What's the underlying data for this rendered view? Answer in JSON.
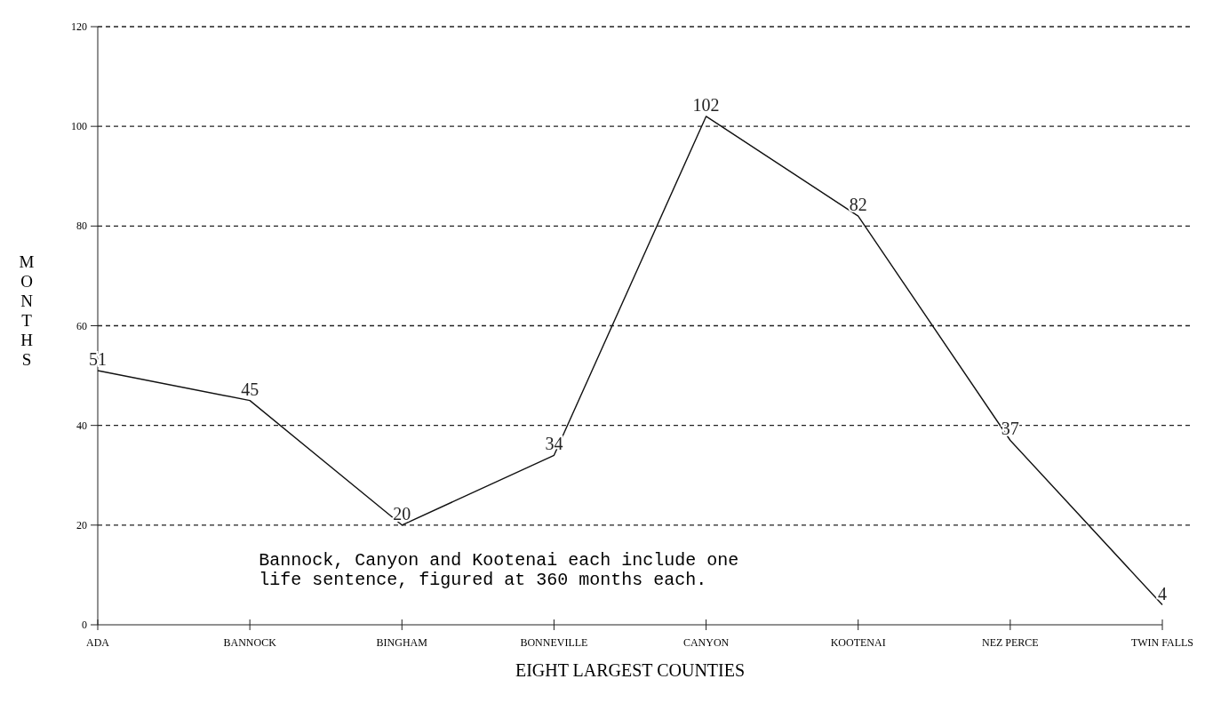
{
  "chart_data": {
    "type": "line",
    "xlabel": "EIGHT LARGEST COUNTIES",
    "ylabel": "MONTHS",
    "categories": [
      "ADA",
      "BANNOCK",
      "BINGHAM",
      "BONNEVILLE",
      "CANYON",
      "KOOTENAI",
      "NEZ PERCE",
      "TWIN FALLS"
    ],
    "series": [
      {
        "color": "#111111",
        "values": [
          51,
          45,
          20,
          34,
          102,
          82,
          37,
          4
        ]
      }
    ],
    "ylim": [
      0,
      120
    ],
    "yticks": [
      0,
      20,
      40,
      60,
      80,
      100,
      120
    ],
    "grid": "y",
    "marker": "none",
    "line_style": "solid",
    "data_labels": true,
    "annotations": [
      "Bannock, Canyon and Kootenai each include one life sentence, figured at 360 months each."
    ]
  }
}
